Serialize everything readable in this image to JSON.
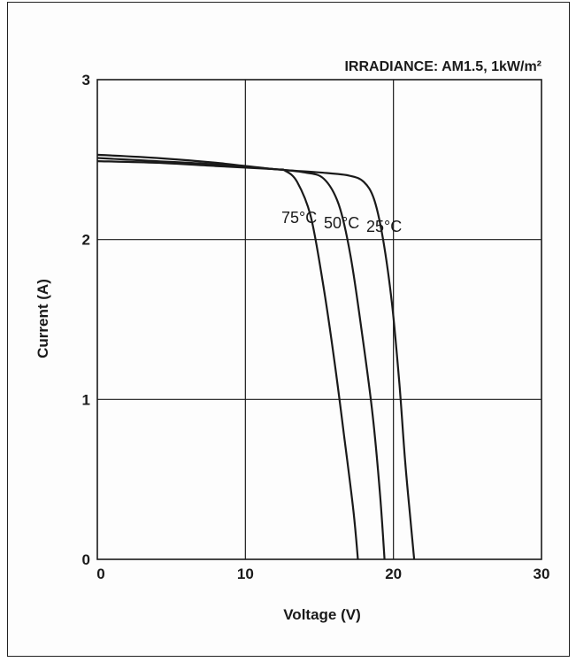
{
  "chart_data": {
    "type": "line",
    "title": "",
    "annotation": "IRRADIANCE: AM1.5, 1kW/m²",
    "xlabel": "Voltage (V)",
    "ylabel": "Current (A)",
    "xlim": [
      0,
      30
    ],
    "ylim": [
      0,
      3
    ],
    "x_ticks": [
      "0",
      "10",
      "20",
      "30"
    ],
    "y_ticks": [
      "0",
      "1",
      "2",
      "3"
    ],
    "grid": true,
    "series": [
      {
        "name": "25°C",
        "points": [
          [
            0,
            2.53
          ],
          [
            4,
            2.51
          ],
          [
            8,
            2.48
          ],
          [
            12,
            2.44
          ],
          [
            15,
            2.42
          ],
          [
            17,
            2.4
          ],
          [
            18,
            2.36
          ],
          [
            18.7,
            2.25
          ],
          [
            19.3,
            2.0
          ],
          [
            19.9,
            1.6
          ],
          [
            20.4,
            1.1
          ],
          [
            20.8,
            0.6
          ],
          [
            21.2,
            0.2
          ],
          [
            21.4,
            0
          ]
        ]
      },
      {
        "name": "50°C",
        "points": [
          [
            0,
            2.51
          ],
          [
            4,
            2.49
          ],
          [
            8,
            2.47
          ],
          [
            12,
            2.44
          ],
          [
            14,
            2.42
          ],
          [
            15.3,
            2.38
          ],
          [
            16.3,
            2.22
          ],
          [
            17.1,
            1.9
          ],
          [
            17.9,
            1.4
          ],
          [
            18.6,
            0.9
          ],
          [
            19.1,
            0.4
          ],
          [
            19.4,
            0
          ]
        ]
      },
      {
        "name": "75°C",
        "points": [
          [
            0,
            2.49
          ],
          [
            4,
            2.48
          ],
          [
            8,
            2.46
          ],
          [
            12,
            2.44
          ],
          [
            12.7,
            2.43
          ],
          [
            13.5,
            2.36
          ],
          [
            14.4,
            2.15
          ],
          [
            15.2,
            1.75
          ],
          [
            16.0,
            1.25
          ],
          [
            16.7,
            0.75
          ],
          [
            17.3,
            0.3
          ],
          [
            17.6,
            0
          ]
        ]
      }
    ],
    "series_labels": [
      "75°C",
      "50°C",
      "25°C"
    ]
  }
}
